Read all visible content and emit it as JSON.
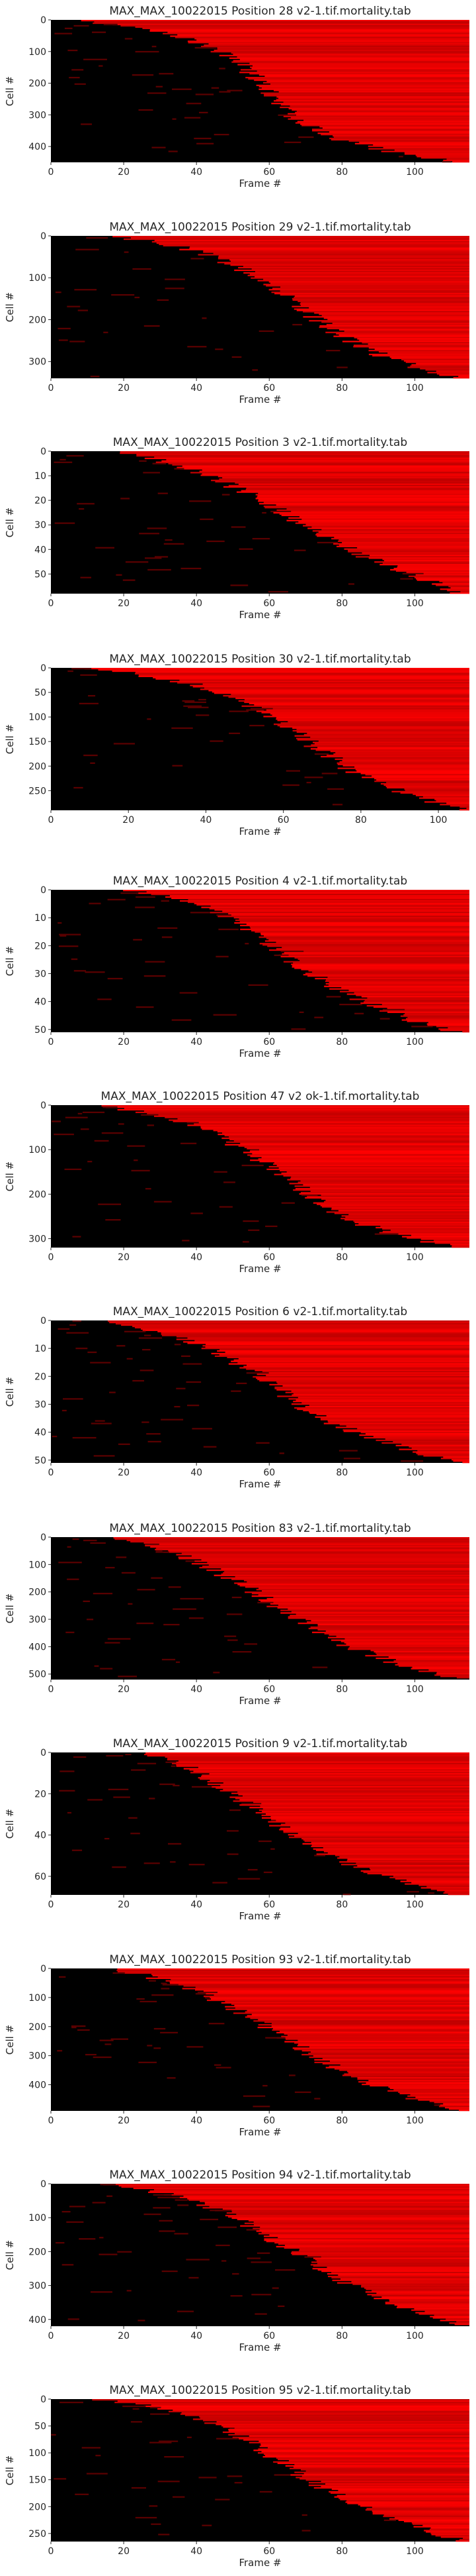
{
  "figure": {
    "colormap": {
      "low": "#000000",
      "high": "#ff0000"
    },
    "axes_color": "#262626"
  },
  "chart_data": [
    {
      "type": "heatmap",
      "title": "MAX_MAX_10022015 Position 28 v2-1.tif.mortality.tab",
      "xlabel": "Frame #",
      "ylabel": "Cell #",
      "xlim": [
        0,
        115
      ],
      "ylim": [
        0,
        450
      ],
      "xticks": [
        0,
        20,
        40,
        60,
        80,
        100
      ],
      "yticks": [
        0,
        100,
        200,
        300,
        400
      ],
      "death_curve": {
        "frames": [
          5,
          20,
          35,
          45,
          52,
          58,
          63,
          68,
          80,
          95,
          110
        ],
        "cells": [
          0,
          20,
          50,
          90,
          140,
          200,
          260,
          320,
          380,
          420,
          445
        ]
      }
    },
    {
      "type": "heatmap",
      "title": "MAX_MAX_10022015 Position 29 v2-1.tif.mortality.tab",
      "xlabel": "Frame #",
      "ylabel": "Cell #",
      "xlim": [
        0,
        115
      ],
      "ylim": [
        0,
        340
      ],
      "xticks": [
        0,
        20,
        40,
        60,
        80,
        100
      ],
      "yticks": [
        0,
        100,
        200,
        300
      ],
      "death_curve": {
        "frames": [
          15,
          25,
          35,
          45,
          55,
          62,
          70,
          80,
          92,
          105,
          112
        ],
        "cells": [
          0,
          10,
          25,
          50,
          90,
          130,
          180,
          240,
          290,
          325,
          338
        ]
      }
    },
    {
      "type": "heatmap",
      "title": "MAX_MAX_10022015 Position 3 v2-1.tif.mortality.tab",
      "xlabel": "Frame #",
      "ylabel": "Cell #",
      "xlim": [
        0,
        115
      ],
      "ylim": [
        0,
        58
      ],
      "xticks": [
        0,
        20,
        40,
        60,
        80,
        100
      ],
      "yticks": [
        0,
        10,
        20,
        30,
        40,
        50
      ],
      "death_curve": {
        "frames": [
          18,
          28,
          38,
          48,
          58,
          66,
          75,
          85,
          98,
          108,
          113
        ],
        "cells": [
          0,
          3,
          7,
          13,
          20,
          27,
          34,
          42,
          50,
          55,
          58
        ]
      }
    },
    {
      "type": "heatmap",
      "title": "MAX_MAX_10022015 Position 30 v2-1.tif.mortality.tab",
      "xlabel": "Frame #",
      "ylabel": "Cell #",
      "xlim": [
        0,
        108
      ],
      "ylim": [
        0,
        290
      ],
      "xticks": [
        0,
        20,
        40,
        60,
        80,
        100
      ],
      "yticks": [
        0,
        50,
        100,
        150,
        200,
        250
      ],
      "death_curve": {
        "frames": [
          5,
          20,
          35,
          45,
          55,
          63,
          70,
          78,
          88,
          98,
          106
        ],
        "cells": [
          0,
          10,
          30,
          55,
          90,
          130,
          170,
          210,
          245,
          270,
          288
        ]
      }
    },
    {
      "type": "heatmap",
      "title": "MAX_MAX_10022015 Position 4 v2-1.tif.mortality.tab",
      "xlabel": "Frame #",
      "ylabel": "Cell #",
      "xlim": [
        0,
        115
      ],
      "ylim": [
        0,
        51
      ],
      "xticks": [
        0,
        20,
        40,
        60,
        80,
        100
      ],
      "yticks": [
        0,
        10,
        20,
        30,
        40,
        50
      ],
      "death_curve": {
        "frames": [
          20,
          35,
          45,
          52,
          58,
          64,
          70,
          78,
          88,
          100,
          112
        ],
        "cells": [
          0,
          3,
          7,
          12,
          17,
          23,
          29,
          35,
          41,
          47,
          51
        ]
      }
    },
    {
      "type": "heatmap",
      "title": "MAX_MAX_10022015 Position 47 v2 ok-1.tif.mortality.tab",
      "xlabel": "Frame #",
      "ylabel": "Cell #",
      "xlim": [
        0,
        115
      ],
      "ylim": [
        0,
        320
      ],
      "xticks": [
        0,
        20,
        40,
        60,
        80,
        100
      ],
      "yticks": [
        0,
        100,
        200,
        300
      ],
      "death_curve": {
        "frames": [
          10,
          25,
          38,
          48,
          56,
          64,
          72,
          80,
          92,
          105,
          113
        ],
        "cells": [
          0,
          15,
          40,
          75,
          115,
          160,
          205,
          250,
          285,
          308,
          318
        ]
      }
    },
    {
      "type": "heatmap",
      "title": "MAX_MAX_10022015 Position 6 v2-1.tif.mortality.tab",
      "xlabel": "Frame #",
      "ylabel": "Cell #",
      "xlim": [
        0,
        115
      ],
      "ylim": [
        0,
        51
      ],
      "xticks": [
        0,
        20,
        40,
        60,
        80,
        100
      ],
      "yticks": [
        0,
        10,
        20,
        30,
        40,
        50
      ],
      "death_curve": {
        "frames": [
          15,
          30,
          42,
          50,
          56,
          62,
          68,
          76,
          88,
          100,
          112
        ],
        "cells": [
          0,
          4,
          9,
          14,
          19,
          24,
          30,
          36,
          42,
          47,
          51
        ]
      }
    },
    {
      "type": "heatmap",
      "title": "MAX_MAX_10022015 Position 83 v2-1.tif.mortality.tab",
      "xlabel": "Frame #",
      "ylabel": "Cell #",
      "xlim": [
        0,
        115
      ],
      "ylim": [
        0,
        520
      ],
      "xticks": [
        0,
        20,
        40,
        60,
        80,
        100
      ],
      "yticks": [
        0,
        100,
        200,
        300,
        400,
        500
      ],
      "death_curve": {
        "frames": [
          15,
          25,
          35,
          45,
          55,
          63,
          72,
          82,
          95,
          106,
          114
        ],
        "cells": [
          0,
          20,
          60,
          120,
          190,
          260,
          330,
          400,
          460,
          500,
          518
        ]
      }
    },
    {
      "type": "heatmap",
      "title": "MAX_MAX_10022015 Position 9 v2-1.tif.mortality.tab",
      "xlabel": "Frame #",
      "ylabel": "Cell #",
      "xlim": [
        0,
        115
      ],
      "ylim": [
        0,
        69
      ],
      "xticks": [
        0,
        20,
        40,
        60,
        80,
        100
      ],
      "yticks": [
        0,
        20,
        40,
        60
      ],
      "death_curve": {
        "frames": [
          25,
          35,
          42,
          48,
          54,
          60,
          66,
          74,
          85,
          98,
          112
        ],
        "cells": [
          0,
          5,
          11,
          18,
          25,
          32,
          40,
          48,
          56,
          63,
          69
        ]
      }
    },
    {
      "type": "heatmap",
      "title": "MAX_MAX_10022015 Position 93 v2-1.tif.mortality.tab",
      "xlabel": "Frame #",
      "ylabel": "Cell #",
      "xlim": [
        0,
        115
      ],
      "ylim": [
        0,
        490
      ],
      "xticks": [
        0,
        20,
        40,
        60,
        80,
        100
      ],
      "yticks": [
        0,
        100,
        200,
        300,
        400
      ],
      "death_curve": {
        "frames": [
          15,
          25,
          35,
          45,
          55,
          63,
          72,
          82,
          95,
          106,
          114
        ],
        "cells": [
          0,
          20,
          55,
          105,
          165,
          230,
          300,
          370,
          430,
          470,
          488
        ]
      }
    },
    {
      "type": "heatmap",
      "title": "MAX_MAX_10022015 Position 94 v2-1.tif.mortality.tab",
      "xlabel": "Frame #",
      "ylabel": "Cell #",
      "xlim": [
        0,
        115
      ],
      "ylim": [
        0,
        420
      ],
      "xticks": [
        0,
        20,
        40,
        60,
        80,
        100
      ],
      "yticks": [
        0,
        100,
        200,
        300,
        400
      ],
      "death_curve": {
        "frames": [
          15,
          28,
          40,
          50,
          58,
          66,
          74,
          84,
          96,
          107,
          114
        ],
        "cells": [
          0,
          20,
          55,
          95,
          145,
          195,
          250,
          305,
          360,
          400,
          418
        ]
      }
    },
    {
      "type": "heatmap",
      "title": "MAX_MAX_10022015 Position 95 v2-1.tif.mortality.tab",
      "xlabel": "Frame #",
      "ylabel": "Cell #",
      "xlim": [
        0,
        115
      ],
      "ylim": [
        0,
        265
      ],
      "xticks": [
        0,
        20,
        40,
        60,
        80,
        100
      ],
      "yticks": [
        0,
        50,
        100,
        150,
        200,
        250
      ],
      "death_curve": {
        "frames": [
          10,
          25,
          38,
          48,
          56,
          64,
          72,
          82,
          95,
          106,
          114
        ],
        "cells": [
          0,
          10,
          30,
          55,
          85,
          120,
          155,
          190,
          225,
          250,
          263
        ]
      }
    }
  ]
}
